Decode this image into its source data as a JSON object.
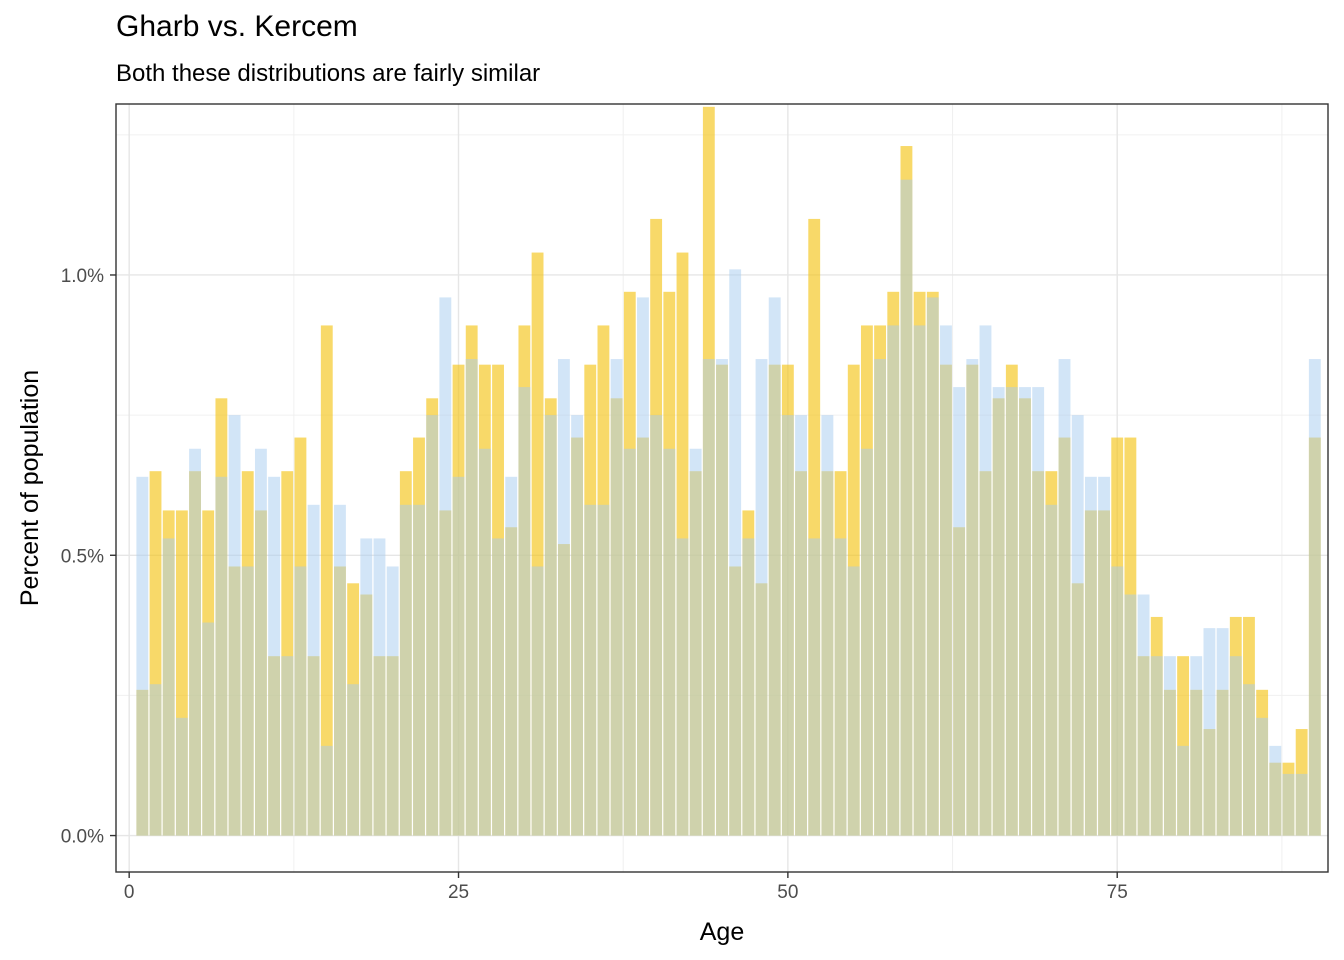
{
  "chart_data": {
    "type": "bar",
    "title": "Gharb vs. Kercem",
    "subtitle": "Both these distributions are fairly similar",
    "xlabel": "Age",
    "ylabel": "Percent of population",
    "xlim": [
      -1,
      91
    ],
    "ylim": [
      -0.065,
      1.305
    ],
    "x_ticks": [
      0,
      25,
      50,
      75
    ],
    "x_tick_labels": [
      "0",
      "25",
      "50",
      "75"
    ],
    "y_ticks": [
      0,
      0.5,
      1.0
    ],
    "y_tick_labels": [
      "0.0%",
      "0.5%",
      "1.0%"
    ],
    "grid": true,
    "legend": "none",
    "x": [
      1,
      2,
      3,
      4,
      5,
      6,
      7,
      8,
      9,
      10,
      11,
      12,
      13,
      14,
      15,
      16,
      17,
      18,
      19,
      20,
      21,
      22,
      23,
      24,
      25,
      26,
      27,
      28,
      29,
      30,
      31,
      32,
      33,
      34,
      35,
      36,
      37,
      38,
      39,
      40,
      41,
      42,
      43,
      44,
      45,
      46,
      47,
      48,
      49,
      50,
      51,
      52,
      53,
      54,
      55,
      56,
      57,
      58,
      59,
      60,
      61,
      62,
      63,
      64,
      65,
      66,
      67,
      68,
      69,
      70,
      71,
      72,
      73,
      74,
      75,
      76,
      77,
      78,
      79,
      80,
      81,
      82,
      83,
      84,
      85,
      86,
      87,
      88,
      89,
      90
    ],
    "series": [
      {
        "color": "#f5c518",
        "opacity": 0.65,
        "values": [
          0.26,
          0.65,
          0.58,
          0.58,
          0.65,
          0.58,
          0.78,
          0.48,
          0.65,
          0.58,
          0.32,
          0.65,
          0.71,
          0.32,
          0.91,
          0.48,
          0.45,
          0.43,
          0.32,
          0.32,
          0.65,
          0.71,
          0.78,
          0.58,
          0.84,
          0.91,
          0.84,
          0.84,
          0.55,
          0.91,
          1.04,
          0.78,
          0.52,
          0.71,
          0.84,
          0.91,
          0.78,
          0.97,
          0.71,
          1.1,
          0.97,
          1.04,
          0.65,
          1.3,
          0.84,
          0.48,
          0.58,
          0.45,
          0.84,
          0.84,
          0.65,
          1.1,
          0.65,
          0.65,
          0.84,
          0.91,
          0.91,
          0.97,
          1.23,
          0.97,
          0.97,
          0.84,
          0.55,
          0.84,
          0.65,
          0.78,
          0.84,
          0.78,
          0.65,
          0.65,
          0.71,
          0.45,
          0.58,
          0.58,
          0.71,
          0.71,
          0.32,
          0.39,
          0.26,
          0.32,
          0.26,
          0.19,
          0.26,
          0.39,
          0.39,
          0.26,
          0.13,
          0.13,
          0.19,
          0.71
        ]
      },
      {
        "color": "#a6ccf0",
        "opacity": 0.5,
        "values": [
          0.64,
          0.27,
          0.53,
          0.21,
          0.69,
          0.38,
          0.64,
          0.75,
          0.48,
          0.69,
          0.64,
          0.32,
          0.48,
          0.59,
          0.16,
          0.59,
          0.27,
          0.53,
          0.53,
          0.48,
          0.59,
          0.59,
          0.75,
          0.96,
          0.64,
          0.85,
          0.69,
          0.53,
          0.64,
          0.8,
          0.48,
          0.75,
          0.85,
          0.75,
          0.59,
          0.59,
          0.85,
          0.69,
          0.96,
          0.75,
          0.69,
          0.53,
          0.69,
          0.85,
          0.85,
          1.01,
          0.53,
          0.85,
          0.96,
          0.75,
          0.75,
          0.53,
          0.75,
          0.53,
          0.48,
          0.69,
          0.85,
          0.91,
          1.17,
          0.91,
          0.96,
          0.91,
          0.8,
          0.85,
          0.91,
          0.8,
          0.8,
          0.8,
          0.8,
          0.59,
          0.85,
          0.75,
          0.64,
          0.64,
          0.48,
          0.43,
          0.43,
          0.32,
          0.32,
          0.16,
          0.32,
          0.37,
          0.37,
          0.32,
          0.27,
          0.21,
          0.16,
          0.11,
          0.11,
          0.85
        ]
      }
    ]
  }
}
